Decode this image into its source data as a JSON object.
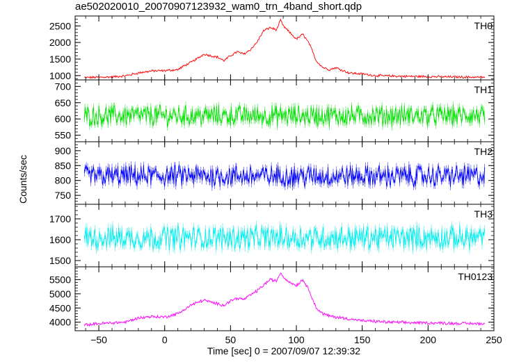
{
  "chart_data": {
    "type": "line",
    "title": "ae502020010_20070907123932_wam0_trn_4band_short.qdp",
    "xlabel": "Time [sec] 0 = 2007/09/07 12:39:32",
    "ylabel": "Counts/sec",
    "xlim": [
      -68,
      250
    ],
    "x_ticks": [
      -50,
      0,
      50,
      100,
      150,
      200,
      250
    ],
    "x_tick_labels": [
      "−50",
      "0",
      "50",
      "100",
      "150",
      "200",
      "250"
    ],
    "x_range": [
      -61,
      243
    ],
    "panels": [
      {
        "name": "TH0",
        "color": "#ff0000",
        "ylim": [
          870,
          2800
        ],
        "y_ticks": [
          1000,
          1500,
          2000,
          2500
        ],
        "y_tick_labels": [
          "1000",
          "1500",
          "2000",
          "2500"
        ],
        "x": [
          -61,
          -50,
          -40,
          -30,
          -20,
          -10,
          0,
          10,
          15,
          20,
          25,
          30,
          35,
          40,
          45,
          50,
          55,
          60,
          65,
          70,
          75,
          80,
          85,
          88,
          90,
          95,
          100,
          105,
          110,
          115,
          120,
          125,
          130,
          140,
          150,
          160,
          170,
          180,
          190,
          200,
          210,
          220,
          230,
          243
        ],
        "values": [
          940,
          950,
          960,
          990,
          1080,
          1140,
          1150,
          1180,
          1300,
          1400,
          1520,
          1650,
          1600,
          1560,
          1450,
          1600,
          1720,
          1650,
          1780,
          2000,
          2350,
          2450,
          2380,
          2680,
          2500,
          2300,
          2100,
          2250,
          1950,
          1450,
          1250,
          1180,
          1240,
          1080,
          1050,
          1000,
          990,
          980,
          975,
          970,
          965,
          960,
          955,
          950
        ],
        "noise": 30
      },
      {
        "name": "TH1",
        "color": "#00e000",
        "ylim": [
          530,
          720
        ],
        "y_ticks": [
          550,
          600,
          650,
          700
        ],
        "y_tick_labels": [
          "550",
          "600",
          "650",
          "700"
        ],
        "x": [
          -61,
          243
        ],
        "values": [
          610,
          610
        ],
        "noise": 28
      },
      {
        "name": "TH2",
        "color": "#0000ff",
        "ylim": [
          720,
          930
        ],
        "y_ticks": [
          750,
          800,
          850,
          900
        ],
        "y_tick_labels": [
          "750",
          "800",
          "850",
          "900"
        ],
        "x": [
          -61,
          243
        ],
        "values": [
          815,
          815
        ],
        "noise": 32
      },
      {
        "name": "TH3",
        "color": "#00eeee",
        "ylim": [
          1470,
          1770
        ],
        "y_ticks": [
          1500,
          1600,
          1700
        ],
        "y_tick_labels": [
          "1500",
          "1600",
          "1700"
        ],
        "x": [
          -61,
          243
        ],
        "values": [
          1610,
          1610
        ],
        "noise": 50
      },
      {
        "name": "TH0123",
        "color": "#ff00ff",
        "ylim": [
          3700,
          5950
        ],
        "y_ticks": [
          4000,
          4500,
          5000,
          5500
        ],
        "y_tick_labels": [
          "4000",
          "4500",
          "5000",
          "5500"
        ],
        "x": [
          -61,
          -50,
          -40,
          -30,
          -20,
          -10,
          0,
          10,
          15,
          20,
          25,
          30,
          35,
          40,
          45,
          50,
          55,
          60,
          65,
          70,
          75,
          80,
          85,
          88,
          90,
          95,
          100,
          105,
          110,
          115,
          120,
          125,
          130,
          140,
          150,
          160,
          170,
          180,
          190,
          200,
          210,
          220,
          230,
          243
        ],
        "values": [
          3900,
          3950,
          3980,
          4000,
          4150,
          4200,
          4180,
          4300,
          4450,
          4600,
          4700,
          4780,
          4700,
          4650,
          4600,
          4750,
          4850,
          4800,
          4950,
          5100,
          5300,
          5500,
          5450,
          5750,
          5600,
          5400,
          5300,
          5500,
          5100,
          4500,
          4300,
          4220,
          4180,
          4120,
          4050,
          4030,
          4000,
          3990,
          3980,
          3975,
          3970,
          3960,
          3955,
          3950
        ],
        "noise": 45
      }
    ]
  }
}
